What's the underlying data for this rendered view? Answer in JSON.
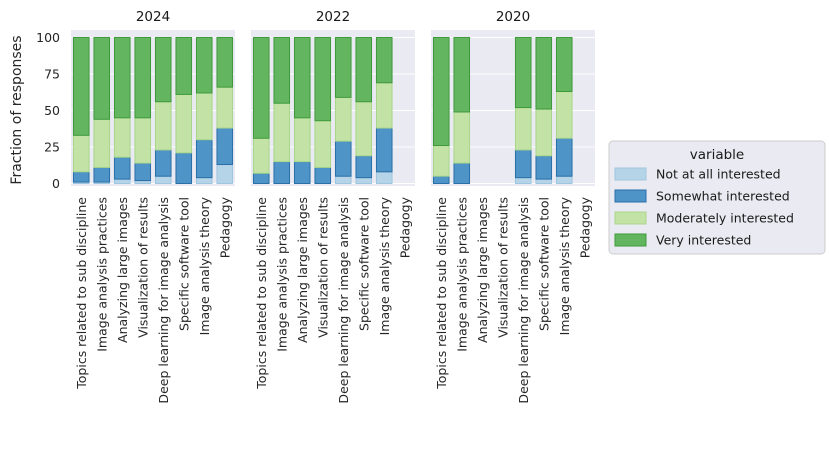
{
  "chart_data": {
    "type": "bar",
    "stacked": true,
    "ylabel": "Fraction of responses",
    "ylim": [
      0,
      100
    ],
    "yticks": [
      "0",
      "25",
      "50",
      "75",
      "100"
    ],
    "grid": true,
    "legend_position": "right",
    "legend_title": "variable",
    "categories": [
      "Topics related to sub discipline",
      "Image analysis practices",
      "Analyzing large images",
      "Visualization of results",
      "Deep learning for image analysis",
      "Specific software tool",
      "Image analysis theory",
      "Pedagogy"
    ],
    "series_names": [
      "Not at all interested",
      "Somewhat interested",
      "Moderately interested",
      "Very interested"
    ],
    "series_fill": [
      "#b6d4e8",
      "#4f94c7",
      "#c2e3a5",
      "#64b560"
    ],
    "series_edge": [
      "#9ec6df",
      "#2a6fa8",
      "#a9d68a",
      "#3f9a3c"
    ],
    "panels": [
      {
        "title": "2024",
        "bars": [
          [
            1,
            7,
            25,
            67
          ],
          [
            1,
            10,
            33,
            56
          ],
          [
            3,
            15,
            27,
            55
          ],
          [
            2,
            12,
            31,
            55
          ],
          [
            5,
            18,
            33,
            44
          ],
          [
            0,
            21,
            40,
            39
          ],
          [
            4,
            26,
            32,
            38
          ],
          [
            13,
            25,
            28,
            34
          ]
        ]
      },
      {
        "title": "2022",
        "bars": [
          [
            0,
            7,
            24,
            69
          ],
          [
            0,
            15,
            40,
            45
          ],
          [
            0,
            15,
            30,
            55
          ],
          [
            0,
            11,
            32,
            57
          ],
          [
            5,
            24,
            30,
            41
          ],
          [
            4,
            15,
            37,
            44
          ],
          [
            8,
            30,
            31,
            31
          ],
          null
        ]
      },
      {
        "title": "2020",
        "bars": [
          [
            0,
            5,
            21,
            74
          ],
          [
            0,
            14,
            35,
            51
          ],
          null,
          null,
          [
            4,
            19,
            29,
            48
          ],
          [
            3,
            16,
            32,
            49
          ],
          [
            5,
            26,
            32,
            37
          ],
          null
        ]
      }
    ]
  }
}
